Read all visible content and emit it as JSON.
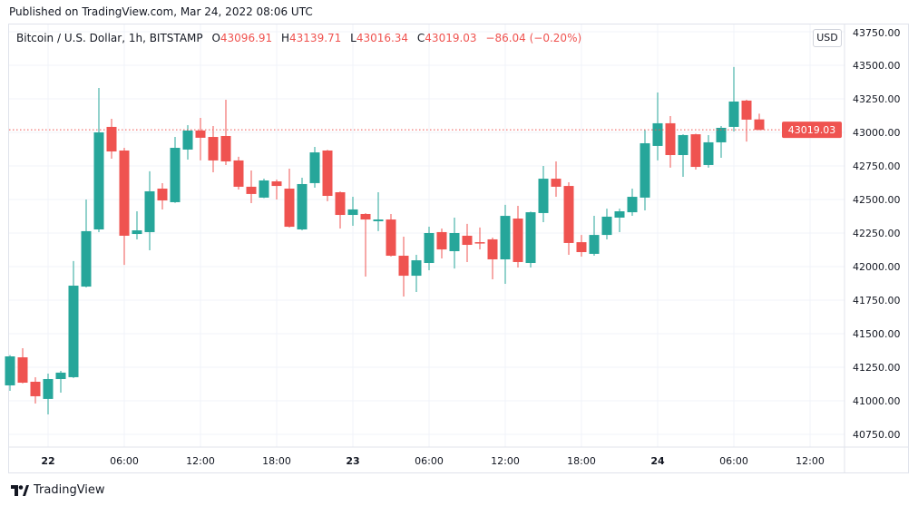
{
  "published": "Published on TradingView.com, Mar 24, 2022 08:06 UTC",
  "legend": {
    "symbol": "Bitcoin / U.S. Dollar, 1h, BITSTAMP",
    "o_label": "O",
    "o": "43096.91",
    "h_label": "H",
    "h": "43139.71",
    "l_label": "L",
    "l": "43016.34",
    "c_label": "C",
    "c": "43019.03",
    "change": "−86.04 (−0.20%)"
  },
  "currency_button": "USD",
  "brand": "TradingView",
  "colors": {
    "up": "#26a69a",
    "down": "#ef5350",
    "grid": "#f0f3fa",
    "last_price": "#ef5350"
  },
  "chart_data": {
    "type": "candlestick",
    "interval": "1h",
    "ylim": [
      40650,
      43780
    ],
    "grid": true,
    "y_ticks": [
      "40750.00",
      "41000.00",
      "41250.00",
      "41500.00",
      "41750.00",
      "42000.00",
      "42250.00",
      "42500.00",
      "42750.00",
      "43000.00",
      "43250.00",
      "43500.00",
      "43750.00"
    ],
    "x_ticks": [
      {
        "label": "22",
        "hour": 0
      },
      {
        "label": "06:00",
        "hour": 6
      },
      {
        "label": "12:00",
        "hour": 12
      },
      {
        "label": "18:00",
        "hour": 18
      },
      {
        "label": "23",
        "hour": 24
      },
      {
        "label": "06:00",
        "hour": 30
      },
      {
        "label": "12:00",
        "hour": 36
      },
      {
        "label": "18:00",
        "hour": 42
      },
      {
        "label": "24",
        "hour": 48
      },
      {
        "label": "06:00",
        "hour": 54
      },
      {
        "label": "12:00",
        "hour": 60
      }
    ],
    "first_candle_hour": -3,
    "last_price": 43019.03,
    "last_price_label": "43019.03",
    "candles": [
      [
        41115,
        41340,
        41074,
        41331
      ],
      [
        41324,
        41392,
        41130,
        41135
      ],
      [
        41142,
        41176,
        40980,
        41034
      ],
      [
        41014,
        41203,
        40899,
        41162
      ],
      [
        41162,
        41223,
        41061,
        41210
      ],
      [
        41176,
        42041,
        41170,
        41858
      ],
      [
        41851,
        42500,
        41845,
        42264
      ],
      [
        42277,
        43331,
        42257,
        43000
      ],
      [
        43041,
        43101,
        42804,
        42858
      ],
      [
        42865,
        42885,
        42013,
        42230
      ],
      [
        42243,
        42412,
        42203,
        42270
      ],
      [
        42257,
        42710,
        42122,
        42561
      ],
      [
        42581,
        42622,
        42426,
        42493
      ],
      [
        42480,
        42966,
        42475,
        42885
      ],
      [
        42872,
        43054,
        42797,
        43014
      ],
      [
        43014,
        43108,
        42791,
        42960
      ],
      [
        42966,
        43047,
        42703,
        42791
      ],
      [
        42973,
        43243,
        42757,
        42784
      ],
      [
        42791,
        42818,
        42574,
        42595
      ],
      [
        42595,
        42716,
        42473,
        42541
      ],
      [
        42514,
        42655,
        42510,
        42642
      ],
      [
        42635,
        42649,
        42500,
        42601
      ],
      [
        42581,
        42730,
        42291,
        42297
      ],
      [
        42277,
        42662,
        42270,
        42615
      ],
      [
        42622,
        42892,
        42588,
        42851
      ],
      [
        42865,
        42870,
        42487,
        42527
      ],
      [
        42554,
        42560,
        42284,
        42385
      ],
      [
        42385,
        42520,
        42304,
        42426
      ],
      [
        42392,
        42398,
        41926,
        42351
      ],
      [
        42338,
        42554,
        42264,
        42351
      ],
      [
        42351,
        42392,
        42075,
        42081
      ],
      [
        42081,
        42223,
        41777,
        41932
      ],
      [
        41932,
        42088,
        41811,
        42047
      ],
      [
        42027,
        42297,
        41973,
        42250
      ],
      [
        42257,
        42284,
        42061,
        42128
      ],
      [
        42115,
        42365,
        41986,
        42250
      ],
      [
        42230,
        42318,
        42034,
        42162
      ],
      [
        42182,
        42291,
        42128,
        42176
      ],
      [
        42203,
        42216,
        41905,
        42054
      ],
      [
        42054,
        42460,
        41872,
        42378
      ],
      [
        42358,
        42453,
        41993,
        42034
      ],
      [
        42027,
        42410,
        41993,
        42405
      ],
      [
        42399,
        42750,
        42331,
        42655
      ],
      [
        42655,
        42784,
        42520,
        42595
      ],
      [
        42601,
        42628,
        42088,
        42176
      ],
      [
        42182,
        42236,
        42074,
        42108
      ],
      [
        42095,
        42378,
        42081,
        42236
      ],
      [
        42236,
        42432,
        42203,
        42372
      ],
      [
        42365,
        42432,
        42257,
        42412
      ],
      [
        42405,
        42581,
        42378,
        42520
      ],
      [
        42514,
        43020,
        42419,
        42919
      ],
      [
        42899,
        43297,
        42791,
        43068
      ],
      [
        43068,
        43122,
        42737,
        42831
      ],
      [
        42831,
        42986,
        42669,
        42980
      ],
      [
        42986,
        42990,
        42723,
        42743
      ],
      [
        42757,
        42980,
        42737,
        42926
      ],
      [
        42926,
        43047,
        42811,
        43034
      ],
      [
        43041,
        43487,
        43007,
        43230
      ],
      [
        43237,
        43243,
        42932,
        43095
      ],
      [
        43096.91,
        43139.71,
        43016.34,
        43019.03
      ]
    ]
  }
}
